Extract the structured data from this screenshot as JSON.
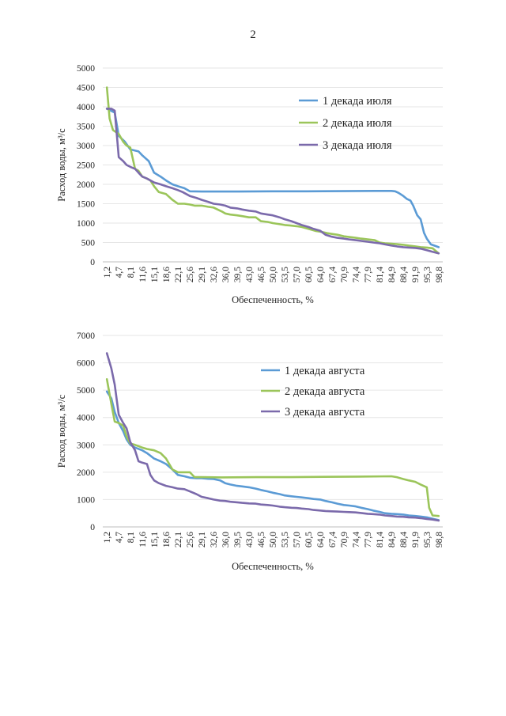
{
  "page": {
    "number": "2"
  },
  "colors": {
    "series1": "#5b9bd5",
    "series2": "#9bc55a",
    "series3": "#7b6aab"
  },
  "chart_data": [
    {
      "type": "line",
      "xlabel": "Обеспеченность, %",
      "ylabel": "Расход воды, м³/с",
      "ylim": [
        0,
        5000
      ],
      "yticks": [
        0,
        500,
        1000,
        1500,
        2000,
        2500,
        3000,
        3500,
        4000,
        4500,
        5000
      ],
      "xlim": [
        0,
        100
      ],
      "xticks": [
        "1,2",
        "4,7",
        "8,1",
        "11,6",
        "15,1",
        "18,6",
        "22,1",
        "25,6",
        "29,1",
        "32,6",
        "36,0",
        "39,5",
        "43,0",
        "46,5",
        "50,0",
        "53,5",
        "57,0",
        "60,5",
        "64,0",
        "67,4",
        "70,9",
        "74,4",
        "77,9",
        "81,4",
        "84,9",
        "88,4",
        "91,9",
        "95,3",
        "98,8"
      ],
      "legend_position": "top-right",
      "series": [
        {
          "name": "1 декада июля",
          "x": [
            1.2,
            3.5,
            4.7,
            6.5,
            8.1,
            10.5,
            11.6,
            13.5,
            15.1,
            17.0,
            18.6,
            20.5,
            22.1,
            24.0,
            25.6,
            30,
            40,
            50,
            60,
            70,
            80,
            84.9,
            86,
            87,
            88.4,
            89.5,
            90.5,
            91.3,
            92.5,
            93.5,
            94.5,
            95.3,
            96.5,
            97.5,
            98.8
          ],
          "y": [
            3950,
            3850,
            3250,
            3100,
            2900,
            2850,
            2750,
            2600,
            2300,
            2200,
            2100,
            2000,
            1950,
            1900,
            1820,
            1815,
            1815,
            1820,
            1820,
            1825,
            1830,
            1830,
            1820,
            1780,
            1700,
            1620,
            1580,
            1450,
            1200,
            1100,
            750,
            600,
            450,
            420,
            380
          ]
        },
        {
          "name": "2 декада июля",
          "x": [
            1.2,
            2.0,
            3.0,
            4.7,
            6.0,
            7.0,
            8.1,
            9.5,
            10.5,
            11.6,
            13.0,
            14.0,
            15.1,
            16.5,
            18.6,
            20.5,
            22.1,
            24.0,
            25.6,
            27.0,
            29.1,
            31.0,
            32.6,
            35.0,
            36.0,
            37.5,
            39.5,
            41.0,
            43.0,
            45.0,
            46.5,
            48.5,
            50.0,
            51.5,
            53.5,
            55.0,
            57.0,
            58.5,
            60.5,
            62.5,
            64.0,
            66.0,
            67.4,
            69.0,
            70.9,
            72.5,
            74.4,
            76.0,
            77.9,
            80.0,
            81.4,
            83.0,
            84.9,
            86.5,
            88.4,
            90.0,
            91.9,
            93.5,
            95.3,
            97.0,
            98.8
          ],
          "y": [
            4500,
            3700,
            3400,
            3300,
            3100,
            3000,
            2950,
            2400,
            2350,
            2200,
            2150,
            2100,
            1950,
            1800,
            1750,
            1600,
            1500,
            1500,
            1480,
            1450,
            1450,
            1420,
            1400,
            1300,
            1250,
            1220,
            1200,
            1180,
            1150,
            1150,
            1050,
            1030,
            1000,
            980,
            950,
            940,
            920,
            900,
            850,
            800,
            780,
            740,
            720,
            700,
            660,
            640,
            620,
            600,
            580,
            560,
            500,
            480,
            470,
            460,
            440,
            420,
            400,
            380,
            370,
            350,
            220
          ]
        },
        {
          "name": "3 декада июля",
          "x": [
            1.2,
            2.5,
            3.5,
            4.2,
            4.7,
            6.0,
            7.0,
            8.1,
            9.5,
            10.5,
            11.6,
            13.0,
            15.1,
            17.0,
            18.6,
            20.5,
            22.1,
            23.5,
            25.6,
            27.5,
            29.1,
            31.0,
            32.6,
            34.5,
            36.0,
            37.5,
            39.5,
            41.0,
            43.0,
            45.0,
            46.5,
            48.5,
            50.0,
            52.0,
            53.5,
            55.5,
            57.0,
            58.5,
            60.5,
            62.0,
            64.0,
            65.5,
            67.4,
            69.0,
            70.9,
            72.5,
            74.4,
            76.0,
            77.9,
            79.5,
            81.4,
            83.0,
            84.9,
            86.5,
            88.4,
            90.0,
            91.9,
            93.5,
            95.3,
            97.0,
            98.8
          ],
          "y": [
            3950,
            3950,
            3900,
            3200,
            2700,
            2600,
            2500,
            2450,
            2400,
            2300,
            2200,
            2150,
            2050,
            2000,
            1950,
            1900,
            1850,
            1800,
            1700,
            1650,
            1600,
            1550,
            1500,
            1480,
            1450,
            1400,
            1380,
            1350,
            1320,
            1300,
            1250,
            1220,
            1200,
            1150,
            1100,
            1050,
            1000,
            950,
            900,
            850,
            800,
            700,
            650,
            620,
            600,
            580,
            560,
            540,
            520,
            500,
            480,
            450,
            420,
            400,
            380,
            370,
            360,
            340,
            300,
            260,
            220
          ]
        }
      ]
    },
    {
      "type": "line",
      "xlabel": "Обеспеченность, %",
      "ylabel": "Расход воды, м³/с",
      "ylim": [
        0,
        7000
      ],
      "yticks": [
        0,
        1000,
        2000,
        3000,
        4000,
        5000,
        6000,
        7000
      ],
      "xlim": [
        0,
        100
      ],
      "xticks": [
        "1,2",
        "4,7",
        "8,1",
        "11,6",
        "15,1",
        "18,6",
        "22,1",
        "25,6",
        "29,1",
        "32,6",
        "36,0",
        "39,5",
        "43,0",
        "46,5",
        "50,0",
        "53,5",
        "57,0",
        "60,5",
        "64,0",
        "67,4",
        "70,9",
        "74,4",
        "77,9",
        "81,4",
        "84,9",
        "88,4",
        "91,9",
        "95,3",
        "98,8"
      ],
      "legend_position": "top-right",
      "series": [
        {
          "name": "1 декада августа",
          "x": [
            1.2,
            2.5,
            3.5,
            4.7,
            6.0,
            7.0,
            8.1,
            9.5,
            11.6,
            13.0,
            15.1,
            17.0,
            18.6,
            20.5,
            22.1,
            24.0,
            25.6,
            27.5,
            29.1,
            31.0,
            32.6,
            34.5,
            36.0,
            37.5,
            39.5,
            41.0,
            43.0,
            45.0,
            46.5,
            48.5,
            50.0,
            52.0,
            53.5,
            55.5,
            57.0,
            58.5,
            60.5,
            62.0,
            64.0,
            65.5,
            67.4,
            69.0,
            70.9,
            72.5,
            74.4,
            76.0,
            77.9,
            79.5,
            81.4,
            83.0,
            84.9,
            86.5,
            88.4,
            90.0,
            91.9,
            93.5,
            95.3,
            97.0,
            98.8
          ],
          "y": [
            4950,
            4700,
            4200,
            3800,
            3500,
            3200,
            3000,
            2900,
            2800,
            2700,
            2500,
            2400,
            2300,
            2100,
            1900,
            1850,
            1800,
            1780,
            1780,
            1760,
            1750,
            1700,
            1600,
            1550,
            1500,
            1480,
            1450,
            1400,
            1350,
            1300,
            1250,
            1200,
            1150,
            1120,
            1100,
            1080,
            1050,
            1020,
            1000,
            950,
            900,
            850,
            800,
            780,
            750,
            700,
            650,
            600,
            550,
            500,
            480,
            470,
            450,
            420,
            400,
            380,
            350,
            300,
            250
          ]
        },
        {
          "name": "2 декада августа",
          "x": [
            1.2,
            2.5,
            3.5,
            4.7,
            6.0,
            7.0,
            8.1,
            9.5,
            11.6,
            13.0,
            15.1,
            17.0,
            18.6,
            20.5,
            22.1,
            24.0,
            25.6,
            27.0,
            29.1,
            35,
            45,
            55,
            65,
            75,
            84.9,
            86.5,
            88.4,
            90.0,
            91.9,
            93.5,
            95.3,
            96.0,
            97.0,
            98.8
          ],
          "y": [
            5400,
            4500,
            3850,
            3800,
            3700,
            3300,
            3050,
            3000,
            2900,
            2850,
            2800,
            2700,
            2500,
            2100,
            2000,
            2000,
            2000,
            1820,
            1820,
            1810,
            1820,
            1820,
            1830,
            1840,
            1850,
            1820,
            1750,
            1700,
            1650,
            1550,
            1450,
            700,
            420,
            400
          ]
        },
        {
          "name": "3 декада августа",
          "x": [
            1.2,
            2.5,
            3.5,
            4.7,
            6.0,
            7.0,
            8.1,
            9.5,
            10.5,
            11.6,
            13.0,
            14.0,
            15.1,
            16.5,
            18.6,
            20.5,
            22.1,
            24.0,
            25.6,
            27.5,
            29.1,
            31.0,
            32.6,
            34.5,
            36.0,
            37.5,
            39.5,
            41.0,
            43.0,
            45.0,
            46.5,
            48.5,
            50.0,
            52.0,
            53.5,
            55.5,
            57.0,
            58.5,
            60.5,
            62.0,
            64.0,
            65.5,
            67.4,
            69.0,
            70.9,
            72.5,
            74.4,
            76.0,
            77.9,
            79.5,
            81.4,
            83.0,
            84.9,
            86.5,
            88.4,
            90.0,
            91.9,
            93.5,
            95.3,
            97.0,
            98.8
          ],
          "y": [
            6350,
            5800,
            5200,
            4100,
            3800,
            3600,
            3100,
            2800,
            2400,
            2350,
            2300,
            1900,
            1700,
            1600,
            1500,
            1450,
            1400,
            1380,
            1300,
            1200,
            1100,
            1050,
            1000,
            960,
            950,
            920,
            900,
            880,
            860,
            850,
            820,
            800,
            780,
            740,
            720,
            700,
            690,
            670,
            650,
            620,
            600,
            580,
            570,
            560,
            550,
            540,
            530,
            510,
            480,
            470,
            450,
            420,
            400,
            380,
            370,
            350,
            340,
            320,
            290,
            270,
            230
          ]
        }
      ]
    }
  ]
}
